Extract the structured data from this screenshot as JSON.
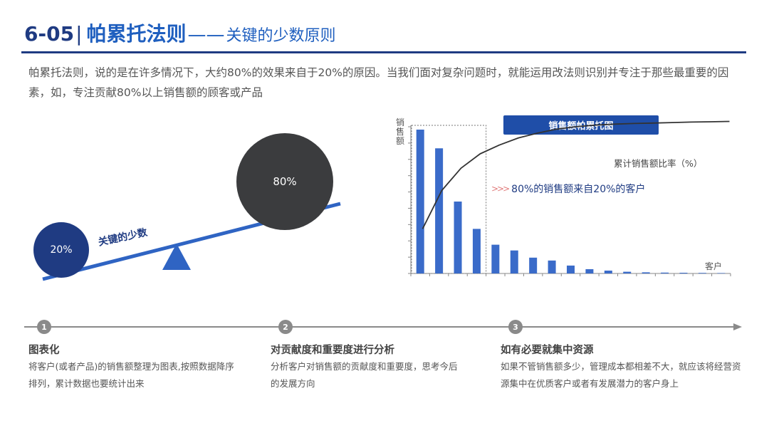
{
  "header": {
    "number": "6-05",
    "main_title": "帕累托法则",
    "dashes": "——",
    "subtitle": "关键的少数原则"
  },
  "intro_text": "帕累托法则，说的是在许多情况下，大约80%的效果来自于20%的原因。当我们面对复杂问题时，就能运用改法则识别并专注于那些最重要的因素，如，专注贡献80%以上销售额的顾客或产品",
  "seesaw": {
    "small_label": "20%",
    "big_label": "80%",
    "lever_label": "关键的少数",
    "colors": {
      "small": "#1f3b82",
      "big": "#3b3c3e",
      "lever": "#2f64c3"
    }
  },
  "chart_data": {
    "type": "bar",
    "title": "销售额帕累托图",
    "ylabel": "销售额",
    "xlabel": "客户",
    "series": [
      {
        "name": "",
        "values": [
          100,
          87,
          50,
          31,
          20,
          16,
          11,
          9,
          5.5,
          3,
          2,
          1.2,
          0.8,
          0.6,
          0.5,
          0.4,
          0.3
        ]
      },
      {
        "name": "累计销售额比率（%）",
        "type": "line",
        "values": [
          28,
          52,
          66,
          75,
          80.5,
          85,
          88,
          90.5,
          92,
          93,
          93.6,
          94,
          94.3,
          94.6,
          94.9,
          95.1,
          95.3
        ]
      }
    ],
    "annotation": "80%的销售额来自20%的客户",
    "highlight_bars": 4,
    "bar_color": "#3a6bc9",
    "line_color": "#333333"
  },
  "steps": [
    {
      "num": "1",
      "title": "图表化",
      "desc": "将客户(或者产品)的销售额整理为图表,按照数据降序排列，累计数据也要统计出来"
    },
    {
      "num": "2",
      "title": "对贡献度和重要度进行分析",
      "desc": "分析客户对销售额的贡献度和重要度，思考今后的发展方向"
    },
    {
      "num": "3",
      "title": "如有必要就集中资源",
      "desc": "如果不管销售额多少，管理成本都相差不大，就应该将经营资源集中在优质客户或者有发展潜力的客户身上"
    }
  ]
}
